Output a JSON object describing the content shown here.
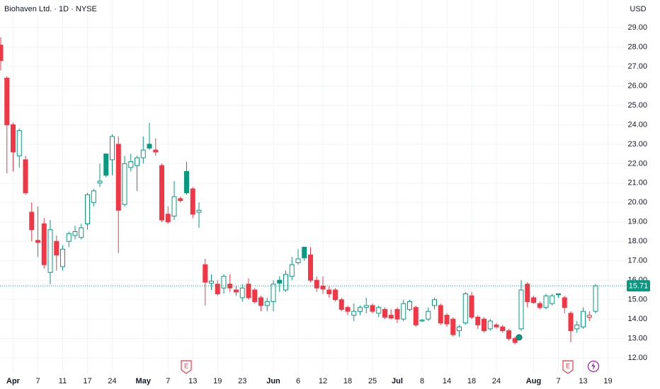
{
  "chart_data": {
    "type": "candlestick",
    "title": "Biohaven Ltd. · 1D · NYSE",
    "currency": "USD",
    "categories": [
      null,
      null,
      "Apr",
      null,
      null,
      null,
      "7",
      null,
      null,
      null,
      "11",
      null,
      null,
      null,
      "17",
      null,
      null,
      null,
      "24",
      null,
      null,
      null,
      null,
      "May",
      null,
      null,
      null,
      "7",
      null,
      null,
      null,
      "13",
      null,
      null,
      null,
      "19",
      null,
      null,
      null,
      "23",
      null,
      null,
      null,
      null,
      "Jun",
      null,
      null,
      null,
      "6",
      null,
      null,
      null,
      "12",
      null,
      null,
      null,
      "18",
      null,
      null,
      null,
      "25",
      null,
      null,
      null,
      "Jul",
      null,
      null,
      null,
      "8",
      null,
      null,
      null,
      "14",
      null,
      null,
      null,
      "18",
      null,
      null,
      null,
      "24",
      null,
      null,
      null,
      null,
      null,
      "Aug",
      null,
      null,
      null,
      "7",
      null,
      null,
      null,
      "13",
      null,
      null,
      null,
      "19"
    ],
    "open": [
      28.1,
      26.4,
      24.0,
      22.4,
      22.2,
      19.5,
      18.05,
      18.9,
      16.4,
      18.0,
      16.7,
      18.0,
      18.3,
      18.2,
      18.9,
      20.0,
      21.0,
      22.5,
      22.2,
      23.0,
      19.9,
      21.8,
      21.9,
      22.3,
      23.0,
      22.7,
      21.9,
      19.4,
      19.3,
      20.2,
      21.6,
      20.7,
      19.5,
      16.8,
      15.85,
      15.8,
      15.6,
      15.8,
      15.5,
      15.1,
      15.8,
      15.5,
      15.1,
      14.7,
      14.9,
      16.0,
      15.5,
      16.2,
      16.9,
      17.7,
      17.3,
      16.0,
      15.7,
      15.5,
      15.5,
      15.0,
      14.6,
      14.2,
      14.4,
      14.6,
      14.7,
      14.3,
      14.5,
      14.2,
      14.5,
      14.0,
      14.5,
      14.6,
      13.9,
      14.0,
      14.7,
      14.7,
      14.2,
      14.0,
      13.4,
      13.8,
      15.2,
      14.1,
      14.0,
      13.5,
      13.7,
      13.6,
      13.4,
      13.0,
      13.5,
      15.8,
      15.1,
      14.8,
      14.6,
      14.8,
      15.3,
      15.1,
      14.3,
      13.5,
      13.6,
      14.1,
      14.4,
      null,
      null
    ],
    "high": [
      28.5,
      26.5,
      24.1,
      23.8,
      22.4,
      20.0,
      19.8,
      19.2,
      19.1,
      18.3,
      17.8,
      18.5,
      18.8,
      18.9,
      20.5,
      20.7,
      22.0,
      22.5,
      23.5,
      23.4,
      22.4,
      22.5,
      22.4,
      23.4,
      24.1,
      23.3,
      22.0,
      19.8,
      21.1,
      20.3,
      22.1,
      20.8,
      20.0,
      17.1,
      16.3,
      16.0,
      16.3,
      16.3,
      15.7,
      15.8,
      16.1,
      15.6,
      15.2,
      15.1,
      16.0,
      16.2,
      16.5,
      17.2,
      17.6,
      17.7,
      17.7,
      16.2,
      16.2,
      15.7,
      15.6,
      15.1,
      14.7,
      14.8,
      14.7,
      15.1,
      14.8,
      14.7,
      14.6,
      14.5,
      14.6,
      15.0,
      15.0,
      14.7,
      14.0,
      14.6,
      15.1,
      14.8,
      14.3,
      14.1,
      13.7,
      15.4,
      15.4,
      14.2,
      14.1,
      14.0,
      13.8,
      13.7,
      13.5,
      13.1,
      16.0,
      15.9,
      15.2,
      14.9,
      15.3,
      15.3,
      15.3,
      15.2,
      14.4,
      13.9,
      14.6,
      14.4,
      15.8,
      null,
      null
    ],
    "low": [
      26.8,
      21.5,
      21.6,
      21.8,
      20.4,
      18.0,
      17.2,
      16.6,
      15.8,
      16.5,
      16.5,
      17.7,
      18.1,
      18.1,
      18.6,
      19.8,
      20.8,
      21.3,
      21.4,
      17.4,
      19.8,
      21.6,
      20.6,
      22.0,
      22.7,
      22.4,
      19.0,
      18.9,
      19.1,
      20.0,
      20.4,
      19.2,
      18.7,
      14.7,
      15.5,
      15.2,
      15.3,
      15.4,
      15.2,
      14.9,
      15.0,
      14.8,
      14.4,
      14.4,
      14.4,
      15.4,
      15.4,
      16.0,
      16.8,
      17.0,
      15.9,
      15.4,
      15.3,
      15.1,
      14.9,
      14.4,
      14.2,
      13.9,
      14.2,
      14.3,
      14.3,
      14.1,
      14.0,
      14.0,
      13.8,
      13.9,
      14.4,
      13.6,
      13.85,
      13.9,
      14.5,
      13.7,
      13.6,
      13.1,
      13.1,
      13.7,
      14.0,
      13.5,
      13.3,
      13.4,
      13.5,
      13.3,
      12.9,
      12.7,
      13.4,
      14.6,
      14.8,
      14.5,
      14.5,
      14.7,
      15.1,
      14.3,
      12.8,
      13.3,
      13.5,
      13.9,
      14.3,
      null,
      null
    ],
    "close": [
      27.3,
      24.0,
      22.6,
      23.7,
      20.5,
      18.6,
      17.95,
      16.8,
      18.6,
      17.3,
      17.6,
      18.4,
      18.5,
      18.7,
      20.4,
      20.6,
      21.1,
      21.4,
      23.4,
      19.6,
      22.0,
      22.1,
      22.3,
      22.7,
      22.8,
      22.6,
      19.1,
      19.0,
      20.3,
      20.1,
      20.5,
      19.4,
      19.6,
      15.9,
      15.95,
      15.3,
      16.2,
      15.6,
      15.4,
      15.6,
      15.1,
      14.9,
      14.7,
      14.9,
      15.8,
      15.85,
      16.3,
      16.8,
      17.1,
      17.15,
      16.0,
      15.6,
      15.55,
      15.3,
      15.0,
      14.5,
      14.4,
      14.4,
      14.6,
      14.7,
      14.4,
      14.6,
      14.1,
      14.05,
      14.0,
      14.8,
      14.9,
      13.7,
      13.95,
      14.4,
      15.0,
      13.8,
      13.75,
      13.2,
      13.6,
      15.3,
      14.1,
      13.7,
      13.4,
      13.9,
      13.6,
      13.4,
      13.0,
      12.8,
      15.5,
      14.9,
      14.85,
      14.6,
      15.2,
      15.2,
      15.25,
      14.6,
      13.4,
      13.7,
      14.4,
      14.2,
      15.71,
      null,
      null
    ],
    "up_color": "#089981",
    "down_color": "#f23645",
    "ylim": [
      11.24,
      30.42
    ],
    "yticks": [
      {
        "value": 12,
        "label": "12.00"
      },
      {
        "value": 13,
        "label": "13.00"
      },
      {
        "value": 14,
        "label": "14.00"
      },
      {
        "value": 15,
        "label": "15.00"
      },
      {
        "value": 16,
        "label": "16.00"
      },
      {
        "value": 17,
        "label": "17.00"
      },
      {
        "value": 18,
        "label": "18.00"
      },
      {
        "value": 19,
        "label": "19.00"
      },
      {
        "value": 20,
        "label": "20.00"
      },
      {
        "value": 21,
        "label": "21.00"
      },
      {
        "value": 22,
        "label": "22.00"
      },
      {
        "value": 23,
        "label": "23.00"
      },
      {
        "value": 24,
        "label": "24.00"
      },
      {
        "value": 25,
        "label": "25.00"
      },
      {
        "value": 26,
        "label": "26.00"
      },
      {
        "value": 27,
        "label": "27.00"
      },
      {
        "value": 28,
        "label": "28.00"
      },
      {
        "value": 29,
        "label": "29.00"
      }
    ],
    "grid": true,
    "events": [
      "E",
      "E"
    ]
  }
}
